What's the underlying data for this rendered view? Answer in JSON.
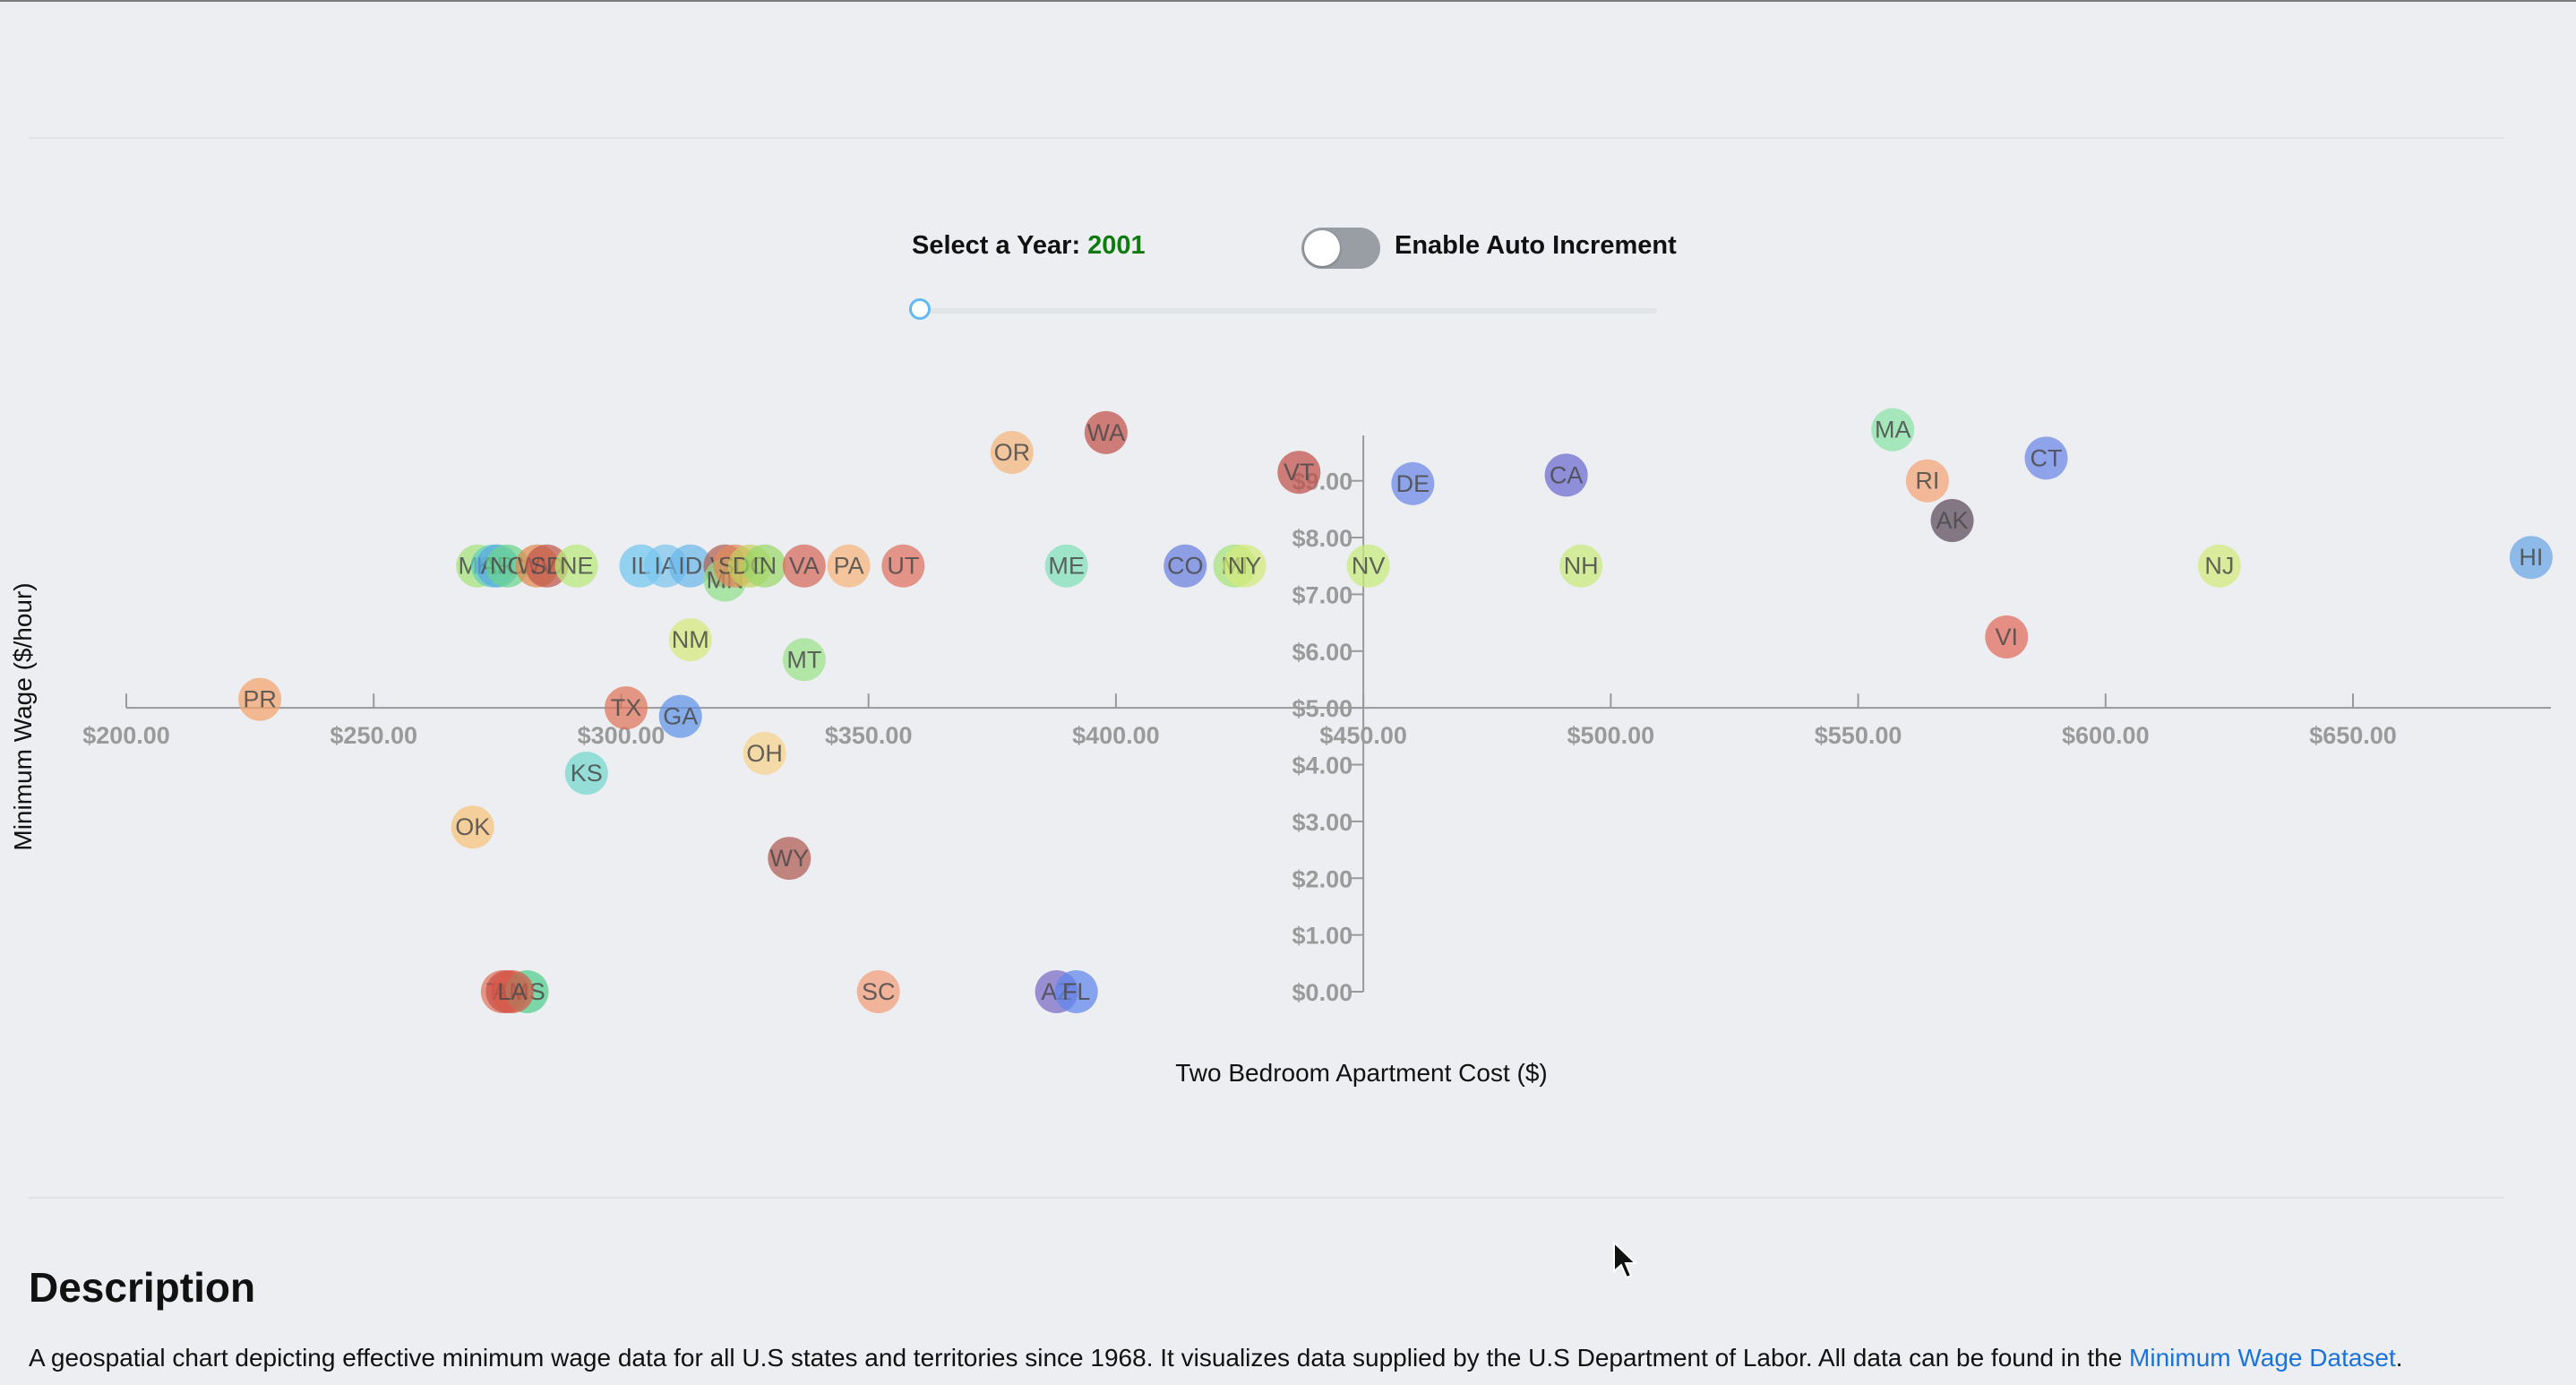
{
  "controls": {
    "year_label": "Select a Year: ",
    "year_value": "2001",
    "toggle_label": "Enable Auto Increment",
    "toggle_on": false,
    "slider_value": 2001
  },
  "chart_data": {
    "type": "scatter",
    "xlabel": "Two Bedroom Apartment Cost ($)",
    "ylabel": "Minimum Wage ($/hour)",
    "x_ticks": [
      "$200.00",
      "$250.00",
      "$300.00",
      "$350.00",
      "$400.00",
      "$450.00",
      "$500.00",
      "$550.00",
      "$600.00",
      "$650.00"
    ],
    "x_tick_values": [
      200,
      250,
      300,
      350,
      400,
      450,
      500,
      550,
      600,
      650
    ],
    "y_ticks": [
      "$0.00",
      "$1.00",
      "$2.00",
      "$3.00",
      "$4.00",
      "$5.00",
      "$6.00",
      "$7.00",
      "$8.00",
      "$9.00"
    ],
    "y_tick_values": [
      0,
      1,
      2,
      3,
      4,
      5,
      6,
      7,
      8,
      9
    ],
    "xlim": [
      200,
      690
    ],
    "ylim": [
      0,
      9.8
    ],
    "points": [
      {
        "label": "PR",
        "x": 227,
        "y": 5.15,
        "color": "#f4a46c"
      },
      {
        "label": "MO",
        "x": 271,
        "y": 7.5,
        "color": "#a6e37a"
      },
      {
        "label": "OK",
        "x": 270,
        "y": 2.9,
        "color": "#f6c37b"
      },
      {
        "label": "KY",
        "x": 274,
        "y": 7.5,
        "color": "#5fd1c0"
      },
      {
        "label": "AR",
        "x": 275,
        "y": 7.5,
        "color": "#5aa7e6"
      },
      {
        "label": "NC",
        "x": 277,
        "y": 7.5,
        "color": "#69d68a"
      },
      {
        "label": "TN",
        "x": 276,
        "y": 0,
        "color": "#e0745a"
      },
      {
        "label": "AL",
        "x": 277,
        "y": 0,
        "color": "#c9504a"
      },
      {
        "label": "MS",
        "x": 281,
        "y": 0,
        "color": "#4fcf8a"
      },
      {
        "label": "LA",
        "x": 278,
        "y": 0,
        "color": "#d85a4a"
      },
      {
        "label": "WV",
        "x": 283,
        "y": 7.5,
        "color": "#e28a4e"
      },
      {
        "label": "SD",
        "x": 285,
        "y": 7.5,
        "color": "#c0564a"
      },
      {
        "label": "NE",
        "x": 291,
        "y": 7.5,
        "color": "#b8ea7a"
      },
      {
        "label": "KS",
        "x": 293,
        "y": 3.85,
        "color": "#73d8cf"
      },
      {
        "label": "TX",
        "x": 301,
        "y": 5.0,
        "color": "#e0745a"
      },
      {
        "label": "IL",
        "x": 304,
        "y": 7.5,
        "color": "#6fc6ef"
      },
      {
        "label": "GA",
        "x": 312,
        "y": 4.85,
        "color": "#5f93e8"
      },
      {
        "label": "IA",
        "x": 309,
        "y": 7.5,
        "color": "#7cc6ef"
      },
      {
        "label": "ID",
        "x": 314,
        "y": 7.5,
        "color": "#69b7ea"
      },
      {
        "label": "NM",
        "x": 314,
        "y": 6.2,
        "color": "#d6ea7a"
      },
      {
        "label": "WI",
        "x": 321,
        "y": 7.5,
        "color": "#b06050"
      },
      {
        "label": "MN",
        "x": 321,
        "y": 7.25,
        "color": "#92e08a"
      },
      {
        "label": "SD",
        "x": 323,
        "y": 7.5,
        "color": "#e18a5a"
      },
      {
        "label": "DC",
        "x": 326,
        "y": 7.5,
        "color": "#c8d060"
      },
      {
        "label": "IN",
        "x": 329,
        "y": 7.5,
        "color": "#9ad86a"
      },
      {
        "label": "OH",
        "x": 329,
        "y": 4.2,
        "color": "#f6d28a"
      },
      {
        "label": "WY",
        "x": 334,
        "y": 2.35,
        "color": "#b05a50"
      },
      {
        "label": "MT",
        "x": 337,
        "y": 5.85,
        "color": "#9be38a"
      },
      {
        "label": "VA",
        "x": 337,
        "y": 7.5,
        "color": "#d66a5a"
      },
      {
        "label": "PA",
        "x": 346,
        "y": 7.5,
        "color": "#f6b67b"
      },
      {
        "label": "SC",
        "x": 352,
        "y": 0,
        "color": "#f49d7a"
      },
      {
        "label": "UT",
        "x": 357,
        "y": 7.5,
        "color": "#e07060"
      },
      {
        "label": "OR",
        "x": 379,
        "y": 9.5,
        "color": "#f4b67b"
      },
      {
        "label": "AZ",
        "x": 388,
        "y": 0,
        "color": "#7a6ac8"
      },
      {
        "label": "ME",
        "x": 390,
        "y": 7.5,
        "color": "#7fe0b8"
      },
      {
        "label": "FL",
        "x": 392,
        "y": 0,
        "color": "#5f86ec"
      },
      {
        "label": "WA",
        "x": 398,
        "y": 9.85,
        "color": "#c0504a"
      },
      {
        "label": "CO",
        "x": 414,
        "y": 7.5,
        "color": "#6a7fe0"
      },
      {
        "label": "MI",
        "x": 424,
        "y": 7.5,
        "color": "#a6e37a"
      },
      {
        "label": "NY",
        "x": 426,
        "y": 7.5,
        "color": "#d2ea7a"
      },
      {
        "label": "VT",
        "x": 437,
        "y": 9.15,
        "color": "#c0504a"
      },
      {
        "label": "NV",
        "x": 451,
        "y": 7.5,
        "color": "#c6ec7a"
      },
      {
        "label": "DE",
        "x": 460,
        "y": 8.95,
        "color": "#6a86e6"
      },
      {
        "label": "CA",
        "x": 491,
        "y": 9.1,
        "color": "#6a6ad0"
      },
      {
        "label": "NH",
        "x": 494,
        "y": 7.5,
        "color": "#c8ec7a"
      },
      {
        "label": "MA",
        "x": 557,
        "y": 9.9,
        "color": "#8be3a6"
      },
      {
        "label": "RI",
        "x": 564,
        "y": 9.0,
        "color": "#f4a474"
      },
      {
        "label": "AK",
        "x": 569,
        "y": 8.3,
        "color": "#5a4a5a"
      },
      {
        "label": "VI",
        "x": 580,
        "y": 6.25,
        "color": "#e06a5a"
      },
      {
        "label": "CT",
        "x": 588,
        "y": 9.4,
        "color": "#6a86e6"
      },
      {
        "label": "NJ",
        "x": 623,
        "y": 7.5,
        "color": "#d2ea7a"
      },
      {
        "label": "HI",
        "x": 686,
        "y": 7.65,
        "color": "#6aa6e6"
      }
    ]
  },
  "description": {
    "title": "Description",
    "text": "A geospatial chart depicting effective minimum wage data for all U.S states and territories since 1968. It visualizes data supplied by the U.S Department of Labor. All data can be found in the ",
    "link_text": "Minimum Wage Dataset",
    "text_end": "."
  }
}
